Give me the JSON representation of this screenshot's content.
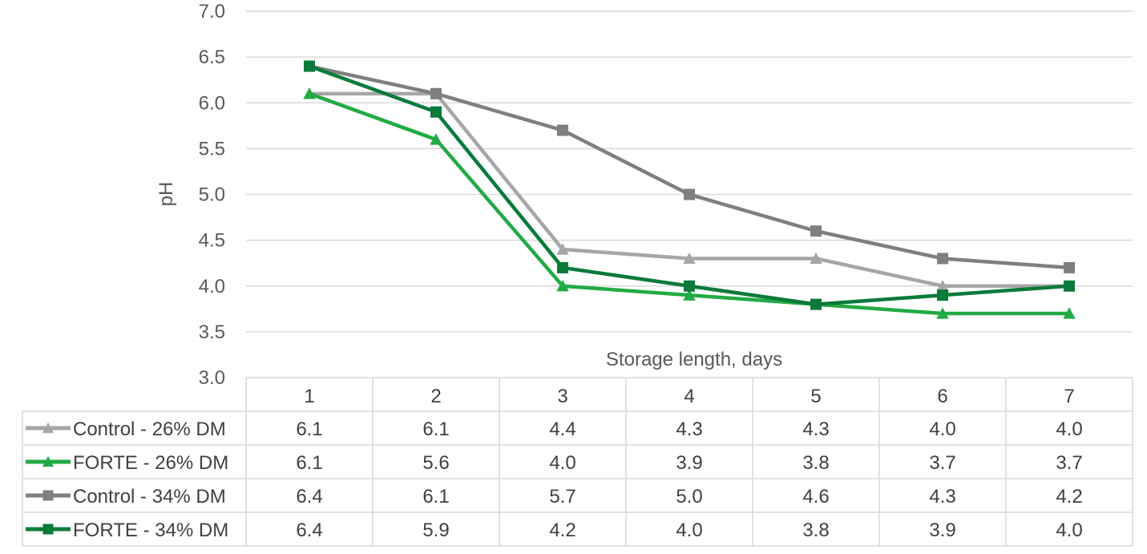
{
  "chart_data": {
    "type": "line",
    "ylabel": "pH",
    "xlabel": "Storage length, days",
    "ylim": [
      3.0,
      7.0
    ],
    "yticks": [
      "7.0",
      "6.5",
      "6.0",
      "5.5",
      "5.0",
      "4.5",
      "4.0",
      "3.5",
      "3.0"
    ],
    "grid": true,
    "categories": [
      "1",
      "2",
      "3",
      "4",
      "5",
      "6",
      "7"
    ],
    "series": [
      {
        "name": "Control - 26% DM",
        "color": "#a6a6a6",
        "marker": "triangle",
        "values": [
          6.1,
          6.1,
          4.4,
          4.3,
          4.3,
          4.0,
          4.0
        ],
        "labels": [
          "6.1",
          "6.1",
          "4.4",
          "4.3",
          "4.3",
          "4.0",
          "4.0"
        ]
      },
      {
        "name": "FORTE - 26% DM",
        "color": "#22aa44",
        "marker": "triangle",
        "values": [
          6.1,
          5.6,
          4.0,
          3.9,
          3.8,
          3.7,
          3.7
        ],
        "labels": [
          "6.1",
          "5.6",
          "4.0",
          "3.9",
          "3.8",
          "3.7",
          "3.7"
        ]
      },
      {
        "name": "Control - 34% DM",
        "color": "#7f7f7f",
        "marker": "square",
        "values": [
          6.4,
          6.1,
          5.7,
          5.0,
          4.6,
          4.3,
          4.2
        ],
        "labels": [
          "6.4",
          "6.1",
          "5.7",
          "5.0",
          "4.6",
          "4.3",
          "4.2"
        ]
      },
      {
        "name": "FORTE - 34% DM",
        "color": "#0a7a3a",
        "marker": "square",
        "values": [
          6.4,
          5.9,
          4.2,
          4.0,
          3.8,
          3.9,
          4.0
        ],
        "labels": [
          "6.4",
          "5.9",
          "4.2",
          "4.0",
          "3.8",
          "3.9",
          "4.0"
        ]
      }
    ]
  }
}
